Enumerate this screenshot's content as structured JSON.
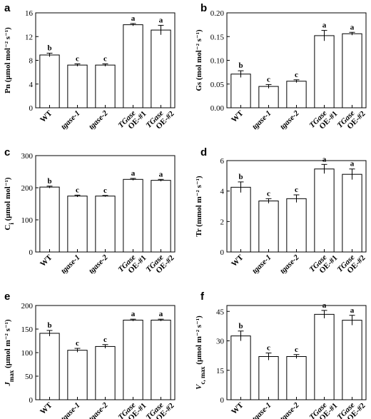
{
  "chart_data": [
    {
      "type": "bar",
      "panel": "a",
      "ylabel": "Pn (µmol mol⁻² s⁻¹)",
      "ylim": [
        0,
        16
      ],
      "yticks": [
        0,
        4,
        8,
        12,
        16
      ],
      "categories": [
        "WT",
        "tgase-1",
        "tgase-2",
        "TGase OE-#1",
        "TGase OE-#2"
      ],
      "values": [
        8.9,
        7.2,
        7.2,
        14.0,
        13.1
      ],
      "errors": [
        0.3,
        0.2,
        0.2,
        0.2,
        0.8
      ],
      "letters": [
        "b",
        "c",
        "c",
        "a",
        "a"
      ]
    },
    {
      "type": "bar",
      "panel": "b",
      "ylabel": "Gs (mol mol⁻² s⁻¹)",
      "ylim": [
        0,
        0.2
      ],
      "yticks": [
        0.0,
        0.05,
        0.1,
        0.15,
        0.2
      ],
      "ytick_labels": [
        "0.00",
        "0.05",
        "0.10",
        "0.15",
        "0.20"
      ],
      "categories": [
        "WT",
        "tgase-1",
        "tgase-2",
        "TGase OE-#1",
        "TGase OE-#2"
      ],
      "values": [
        0.071,
        0.045,
        0.056,
        0.152,
        0.156
      ],
      "errors": [
        0.007,
        0.004,
        0.003,
        0.011,
        0.003
      ],
      "letters": [
        "b",
        "c",
        "c",
        "a",
        "a"
      ]
    },
    {
      "type": "bar",
      "panel": "c",
      "ylabel": "Ci (µmol mol⁻¹)",
      "ylim": [
        0,
        300
      ],
      "yticks": [
        0,
        100,
        200,
        300
      ],
      "categories": [
        "WT",
        "tgase-1",
        "tgase-2",
        "TGase OE-#1",
        "TGase OE-#2"
      ],
      "values": [
        202,
        174,
        174,
        226,
        223
      ],
      "errors": [
        3,
        3,
        2,
        3,
        3
      ],
      "letters": [
        "b",
        "c",
        "c",
        "a",
        "a"
      ]
    },
    {
      "type": "bar",
      "panel": "d",
      "ylabel": "Tr (mmol m⁻² s⁻¹)",
      "ylim": [
        0,
        6
      ],
      "yticks": [
        0,
        2,
        4,
        6
      ],
      "categories": [
        "WT",
        "tgase-1",
        "tgase-2",
        "TGase OE-#1",
        "TGase OE-#2"
      ],
      "values": [
        4.25,
        3.35,
        3.5,
        5.45,
        5.1
      ],
      "errors": [
        0.35,
        0.15,
        0.25,
        0.3,
        0.35
      ],
      "letters": [
        "b",
        "c",
        "c",
        "a",
        "a"
      ]
    },
    {
      "type": "bar",
      "panel": "e",
      "ylabel": "Jmax (µmol m⁻² s⁻¹)",
      "ylim": [
        0,
        200
      ],
      "yticks": [
        0,
        50,
        100,
        150,
        200
      ],
      "categories": [
        "WT",
        "tgase-1",
        "tgase-2",
        "TGase OE-#1",
        "TGase OE-#2"
      ],
      "values": [
        141,
        105,
        113,
        169,
        169
      ],
      "errors": [
        6,
        4,
        4,
        2,
        2
      ],
      "letters": [
        "b",
        "c",
        "c",
        "a",
        "a"
      ]
    },
    {
      "type": "bar",
      "panel": "f",
      "ylabel": "Vc, max (µmol m⁻² s⁻¹)",
      "ylim": [
        0,
        48
      ],
      "yticks": [
        0,
        15,
        30,
        45
      ],
      "categories": [
        "WT",
        "tgase-1",
        "tgase-2",
        "TGase OE-#1",
        "TGase OE-#2"
      ],
      "values": [
        32.5,
        22.0,
        22.0,
        43.5,
        40.5
      ],
      "errors": [
        2.5,
        1.8,
        1.0,
        2.0,
        2.5
      ],
      "letters": [
        "b",
        "c",
        "c",
        "a",
        "a"
      ]
    }
  ]
}
